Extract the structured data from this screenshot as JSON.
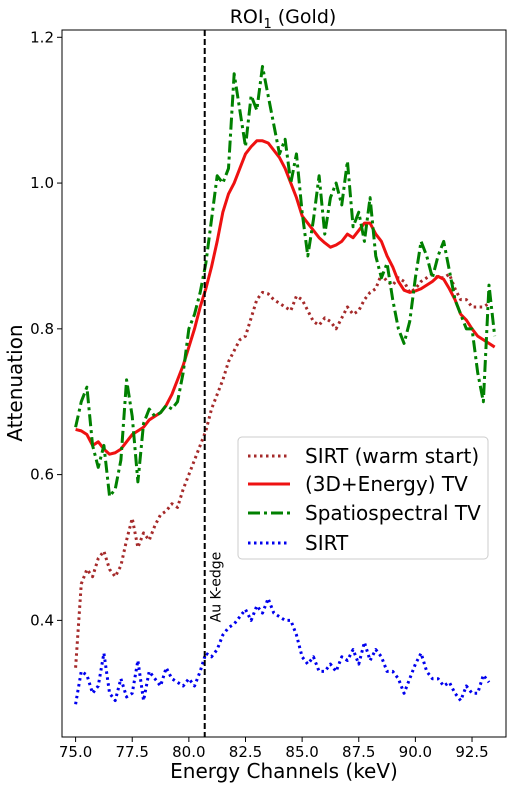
{
  "chart_data": {
    "type": "line",
    "title_main": "ROI",
    "title_sub": "1",
    "title_rest": " (Gold)",
    "xlabel": "Energy Channels (keV)",
    "ylabel": "Attenuation",
    "xlim": [
      74.4,
      94.0
    ],
    "ylim": [
      0.24,
      1.21
    ],
    "xticks": [
      75.0,
      77.5,
      80.0,
      82.5,
      85.0,
      87.5,
      90.0,
      92.5
    ],
    "xtick_labels": [
      "75.0",
      "77.5",
      "80.0",
      "82.5",
      "85.0",
      "87.5",
      "90.0",
      "92.5"
    ],
    "yticks": [
      0.4,
      0.6,
      0.8,
      1.0,
      1.2
    ],
    "ytick_labels": [
      "0.4",
      "0.6",
      "0.8",
      "1.0",
      "1.2"
    ],
    "grid": false,
    "legend_position": "center-right",
    "vline": {
      "x": 80.7,
      "label": "Au K-edge",
      "color": "#000000"
    },
    "series": [
      {
        "name": "SIRT (warm start)",
        "color": "#a52a2a",
        "style": "dotted",
        "x": [
          75.0,
          75.25,
          75.5,
          75.75,
          76.0,
          76.25,
          76.5,
          76.75,
          77.0,
          77.25,
          77.5,
          77.75,
          78.0,
          78.25,
          78.5,
          78.75,
          79.0,
          79.25,
          79.5,
          79.75,
          80.0,
          80.25,
          80.5,
          80.75,
          81.0,
          81.25,
          81.5,
          81.75,
          82.0,
          82.25,
          82.5,
          82.75,
          83.0,
          83.25,
          83.5,
          83.75,
          84.0,
          84.25,
          84.5,
          84.75,
          85.0,
          85.25,
          85.5,
          85.75,
          86.0,
          86.25,
          86.5,
          86.75,
          87.0,
          87.25,
          87.5,
          87.75,
          88.0,
          88.25,
          88.5,
          88.75,
          89.0,
          89.25,
          89.5,
          89.75,
          90.0,
          90.25,
          90.5,
          90.75,
          91.0,
          91.25,
          91.5,
          91.75,
          92.0,
          92.25,
          92.5,
          92.75,
          93.0,
          93.25
        ],
        "y": [
          0.335,
          0.45,
          0.47,
          0.46,
          0.485,
          0.495,
          0.47,
          0.46,
          0.475,
          0.51,
          0.54,
          0.5,
          0.52,
          0.51,
          0.53,
          0.545,
          0.55,
          0.56,
          0.555,
          0.58,
          0.6,
          0.62,
          0.64,
          0.66,
          0.69,
          0.71,
          0.73,
          0.755,
          0.77,
          0.785,
          0.79,
          0.815,
          0.84,
          0.85,
          0.848,
          0.84,
          0.835,
          0.83,
          0.825,
          0.845,
          0.84,
          0.825,
          0.81,
          0.805,
          0.815,
          0.81,
          0.8,
          0.815,
          0.83,
          0.82,
          0.825,
          0.84,
          0.85,
          0.855,
          0.875,
          0.865,
          0.86,
          0.87,
          0.865,
          0.85,
          0.855,
          0.865,
          0.87,
          0.875,
          0.87,
          0.87,
          0.875,
          0.855,
          0.84,
          0.84,
          0.83,
          0.83,
          0.83,
          0.835
        ]
      },
      {
        "name": "(3D+Energy) TV",
        "color": "#ee1111",
        "style": "solid",
        "x": [
          75.0,
          75.25,
          75.5,
          75.75,
          76.0,
          76.25,
          76.5,
          76.75,
          77.0,
          77.25,
          77.5,
          77.75,
          78.0,
          78.25,
          78.5,
          78.75,
          79.0,
          79.25,
          79.5,
          79.75,
          80.0,
          80.25,
          80.5,
          80.75,
          81.0,
          81.25,
          81.5,
          81.75,
          82.0,
          82.25,
          82.5,
          82.75,
          83.0,
          83.25,
          83.5,
          83.75,
          84.0,
          84.25,
          84.5,
          84.75,
          85.0,
          85.25,
          85.5,
          85.75,
          86.0,
          86.25,
          86.5,
          86.75,
          87.0,
          87.25,
          87.5,
          87.75,
          88.0,
          88.25,
          88.5,
          88.75,
          89.0,
          89.25,
          89.5,
          89.75,
          90.0,
          90.25,
          90.5,
          90.75,
          91.0,
          91.25,
          91.5,
          91.75,
          92.0,
          92.25,
          92.5,
          92.75,
          93.0,
          93.25,
          93.5
        ],
        "y": [
          0.662,
          0.66,
          0.655,
          0.64,
          0.645,
          0.635,
          0.628,
          0.63,
          0.635,
          0.645,
          0.655,
          0.66,
          0.665,
          0.675,
          0.68,
          0.685,
          0.695,
          0.71,
          0.73,
          0.75,
          0.775,
          0.8,
          0.83,
          0.855,
          0.885,
          0.92,
          0.96,
          0.985,
          1.0,
          1.02,
          1.04,
          1.05,
          1.058,
          1.058,
          1.055,
          1.045,
          1.035,
          1.02,
          1.0,
          0.98,
          0.955,
          0.945,
          0.935,
          0.925,
          0.918,
          0.912,
          0.915,
          0.92,
          0.93,
          0.925,
          0.935,
          0.945,
          0.945,
          0.93,
          0.92,
          0.9,
          0.885,
          0.865,
          0.853,
          0.85,
          0.852,
          0.855,
          0.86,
          0.865,
          0.872,
          0.868,
          0.855,
          0.84,
          0.82,
          0.812,
          0.8,
          0.79,
          0.785,
          0.78,
          0.775
        ]
      },
      {
        "name": "Spatiospectral TV",
        "color": "#008000",
        "style": "dashdot",
        "x": [
          75.0,
          75.25,
          75.5,
          75.75,
          76.0,
          76.25,
          76.5,
          76.75,
          77.0,
          77.25,
          77.5,
          77.75,
          78.0,
          78.25,
          78.5,
          78.75,
          79.0,
          79.25,
          79.5,
          79.75,
          80.0,
          80.25,
          80.5,
          80.75,
          81.0,
          81.25,
          81.5,
          81.75,
          82.0,
          82.25,
          82.5,
          82.75,
          83.0,
          83.25,
          83.5,
          83.75,
          84.0,
          84.25,
          84.5,
          84.75,
          85.0,
          85.25,
          85.5,
          85.75,
          86.0,
          86.25,
          86.5,
          86.75,
          87.0,
          87.25,
          87.5,
          87.75,
          88.0,
          88.25,
          88.5,
          88.75,
          89.0,
          89.25,
          89.5,
          89.75,
          90.0,
          90.25,
          90.5,
          90.75,
          91.0,
          91.25,
          91.5,
          91.75,
          92.0,
          92.25,
          92.5,
          92.75,
          93.0,
          93.25,
          93.5
        ],
        "y": [
          0.665,
          0.7,
          0.72,
          0.64,
          0.61,
          0.64,
          0.57,
          0.58,
          0.62,
          0.73,
          0.68,
          0.59,
          0.67,
          0.69,
          0.68,
          0.685,
          0.695,
          0.69,
          0.7,
          0.74,
          0.8,
          0.82,
          0.85,
          0.89,
          0.95,
          1.01,
          1.0,
          1.02,
          1.15,
          1.1,
          1.05,
          1.12,
          1.1,
          1.16,
          1.12,
          1.08,
          1.04,
          1.06,
          1.0,
          1.04,
          0.96,
          0.9,
          0.95,
          1.01,
          0.93,
          0.98,
          1.0,
          0.97,
          1.03,
          0.94,
          0.96,
          0.92,
          0.98,
          0.9,
          0.87,
          0.89,
          0.84,
          0.8,
          0.78,
          0.81,
          0.87,
          0.92,
          0.9,
          0.87,
          0.9,
          0.92,
          0.88,
          0.84,
          0.82,
          0.8,
          0.8,
          0.74,
          0.7,
          0.86,
          0.79
        ]
      },
      {
        "name": "SIRT",
        "color": "#0000ee",
        "style": "dotted",
        "x": [
          75.0,
          75.25,
          75.5,
          75.75,
          76.0,
          76.25,
          76.5,
          76.75,
          77.0,
          77.25,
          77.5,
          77.75,
          78.0,
          78.25,
          78.5,
          78.75,
          79.0,
          79.25,
          79.5,
          79.75,
          80.0,
          80.25,
          80.5,
          80.75,
          81.0,
          81.25,
          81.5,
          81.75,
          82.0,
          82.25,
          82.5,
          82.75,
          83.0,
          83.25,
          83.5,
          83.75,
          84.0,
          84.25,
          84.5,
          84.75,
          85.0,
          85.25,
          85.5,
          85.75,
          86.0,
          86.25,
          86.5,
          86.75,
          87.0,
          87.25,
          87.5,
          87.75,
          88.0,
          88.25,
          88.5,
          88.75,
          89.0,
          89.25,
          89.5,
          89.75,
          90.0,
          90.25,
          90.5,
          90.75,
          91.0,
          91.25,
          91.5,
          91.75,
          92.0,
          92.25,
          92.5,
          92.75,
          93.0,
          93.25
        ],
        "y": [
          0.285,
          0.33,
          0.325,
          0.3,
          0.31,
          0.355,
          0.3,
          0.29,
          0.32,
          0.295,
          0.3,
          0.345,
          0.29,
          0.33,
          0.32,
          0.31,
          0.335,
          0.32,
          0.315,
          0.31,
          0.32,
          0.31,
          0.33,
          0.355,
          0.35,
          0.36,
          0.38,
          0.39,
          0.395,
          0.405,
          0.415,
          0.4,
          0.42,
          0.41,
          0.43,
          0.41,
          0.405,
          0.4,
          0.4,
          0.38,
          0.35,
          0.34,
          0.35,
          0.33,
          0.33,
          0.34,
          0.33,
          0.35,
          0.345,
          0.36,
          0.34,
          0.37,
          0.345,
          0.36,
          0.35,
          0.33,
          0.33,
          0.32,
          0.3,
          0.32,
          0.34,
          0.355,
          0.33,
          0.32,
          0.32,
          0.31,
          0.315,
          0.3,
          0.29,
          0.31,
          0.3,
          0.3,
          0.325,
          0.315
        ]
      }
    ]
  }
}
